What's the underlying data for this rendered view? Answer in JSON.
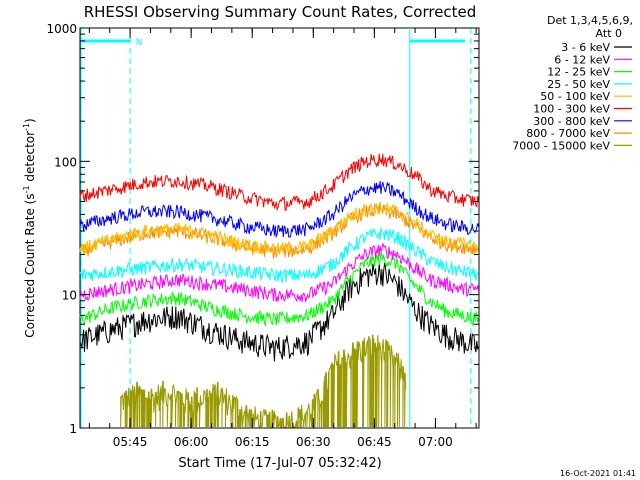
{
  "chart_data": {
    "type": "line",
    "title": "RHESSI Observing Summary Count Rates, Corrected",
    "xlabel": "Start Time (17-Jul-07 05:32:42)",
    "ylabel": "Corrected Count Rate (s",
    "ylabel_sup1": "-1",
    "ylabel_mid": " detector",
    "ylabel_sup2": "-1",
    "ylabel_end": ")",
    "yscale": "log",
    "ylim": [
      1,
      1000
    ],
    "xlim_minutes": [
      0,
      98
    ],
    "y_ticks": [
      {
        "value": 1,
        "label": "1"
      },
      {
        "value": 10,
        "label": "10"
      },
      {
        "value": 100,
        "label": "100"
      },
      {
        "value": 1000,
        "label": "1000"
      }
    ],
    "x_ticks": [
      {
        "minute": 12.3,
        "label": "05:45"
      },
      {
        "minute": 27.3,
        "label": "06:00"
      },
      {
        "minute": 42.3,
        "label": "06:15"
      },
      {
        "minute": 57.3,
        "label": "06:30"
      },
      {
        "minute": 72.3,
        "label": "06:45"
      },
      {
        "minute": 87.3,
        "label": "07:00"
      }
    ],
    "legend_header": [
      "Det 1,3,4,5,6,9,",
      "Att 0"
    ],
    "legend_position": "right",
    "series": [
      {
        "name": "3 - 6 keV",
        "color": "#000000",
        "minutes": [
          0,
          8,
          16,
          24,
          32,
          40,
          48,
          56,
          62,
          66,
          70,
          74,
          78,
          82,
          86,
          90,
          94,
          98
        ],
        "values": [
          4.5,
          5.5,
          6.5,
          7.0,
          5.5,
          4.5,
          4.0,
          4.5,
          7.0,
          11,
          14,
          15,
          12,
          8,
          6,
          5,
          4.5,
          4
        ]
      },
      {
        "name": "6 - 12 keV",
        "color": "#ff00ff",
        "minutes": [
          0,
          8,
          16,
          24,
          32,
          40,
          48,
          56,
          62,
          66,
          70,
          74,
          78,
          82,
          86,
          90,
          94,
          98
        ],
        "values": [
          10,
          11,
          12,
          13,
          12,
          11,
          10,
          10,
          12,
          16,
          20,
          22,
          20,
          16,
          13,
          12,
          11,
          11
        ]
      },
      {
        "name": "12 - 25 keV",
        "color": "#00ff00",
        "minutes": [
          0,
          8,
          16,
          24,
          32,
          40,
          48,
          56,
          62,
          66,
          70,
          74,
          78,
          82,
          86,
          90,
          94,
          98
        ],
        "values": [
          6.5,
          8,
          9,
          9.5,
          8,
          7,
          6.5,
          7,
          9,
          13,
          17,
          19,
          17,
          12,
          9,
          7.5,
          7,
          6.5
        ]
      },
      {
        "name": "25 - 50 keV",
        "color": "#00ffff",
        "minutes": [
          0,
          8,
          16,
          24,
          32,
          40,
          48,
          56,
          62,
          66,
          70,
          74,
          78,
          82,
          86,
          90,
          94,
          98
        ],
        "values": [
          14,
          15,
          16,
          17,
          16,
          15,
          14,
          14,
          17,
          22,
          27,
          29,
          27,
          22,
          18,
          16,
          15,
          14
        ]
      },
      {
        "name": "50 - 100 keV",
        "color": "#ffbb00",
        "minutes": [
          0,
          8,
          16,
          24,
          32,
          40,
          48,
          56,
          62,
          66,
          70,
          74,
          78,
          82,
          86,
          90,
          94,
          98
        ],
        "values": [
          22,
          26,
          30,
          31,
          28,
          24,
          22,
          23,
          30,
          38,
          44,
          45,
          42,
          35,
          28,
          25,
          24,
          23
        ]
      },
      {
        "name": "100 - 300 keV",
        "color": "#ff0000",
        "minutes": [
          0,
          8,
          16,
          24,
          32,
          40,
          48,
          56,
          62,
          66,
          70,
          74,
          78,
          82,
          86,
          90,
          94,
          98
        ],
        "values": [
          55,
          62,
          70,
          72,
          65,
          55,
          48,
          50,
          65,
          85,
          100,
          105,
          95,
          80,
          62,
          55,
          52,
          50
        ]
      },
      {
        "name": "300 - 800 keV",
        "color": "#0000ff",
        "minutes": [
          0,
          8,
          16,
          24,
          32,
          40,
          48,
          56,
          62,
          66,
          70,
          74,
          78,
          82,
          86,
          90,
          94,
          98
        ],
        "values": [
          33,
          38,
          42,
          42,
          38,
          33,
          30,
          31,
          40,
          52,
          62,
          64,
          58,
          46,
          38,
          34,
          32,
          31
        ]
      },
      {
        "name": "800 - 7000 keV",
        "color": "#ff8800",
        "minutes": [
          0,
          8,
          16,
          24,
          32,
          40,
          48,
          56,
          62,
          66,
          70,
          74,
          78,
          82,
          86,
          90,
          94,
          98
        ],
        "values": [
          21,
          25,
          29,
          30,
          27,
          23,
          21,
          22,
          29,
          36,
          42,
          43,
          40,
          33,
          27,
          24,
          23,
          22
        ]
      },
      {
        "name": "7000 - 15000 keV",
        "color": "#999900",
        "minutes": [
          10,
          14,
          18,
          22,
          26,
          30,
          34,
          38,
          42,
          46,
          50,
          54,
          58,
          60,
          62,
          64,
          66,
          68,
          70,
          72,
          74,
          76,
          78,
          80
        ],
        "values": [
          1.6,
          1.8,
          1.7,
          1.9,
          1.6,
          1.7,
          1.8,
          1.5,
          1.2,
          1.1,
          1.1,
          1.2,
          1.5,
          2.0,
          2.8,
          3.2,
          3.5,
          3.8,
          4.0,
          4.2,
          4.0,
          3.5,
          3.0,
          2.4
        ]
      }
    ],
    "markers": {
      "flag_bar_label": "N",
      "dashed_lines_minutes": [
        12.3,
        96
      ],
      "solid_lines_minutes": [
        0,
        81
      ]
    }
  },
  "footer": {
    "timestamp": "16-Oct-2021 01:41"
  }
}
